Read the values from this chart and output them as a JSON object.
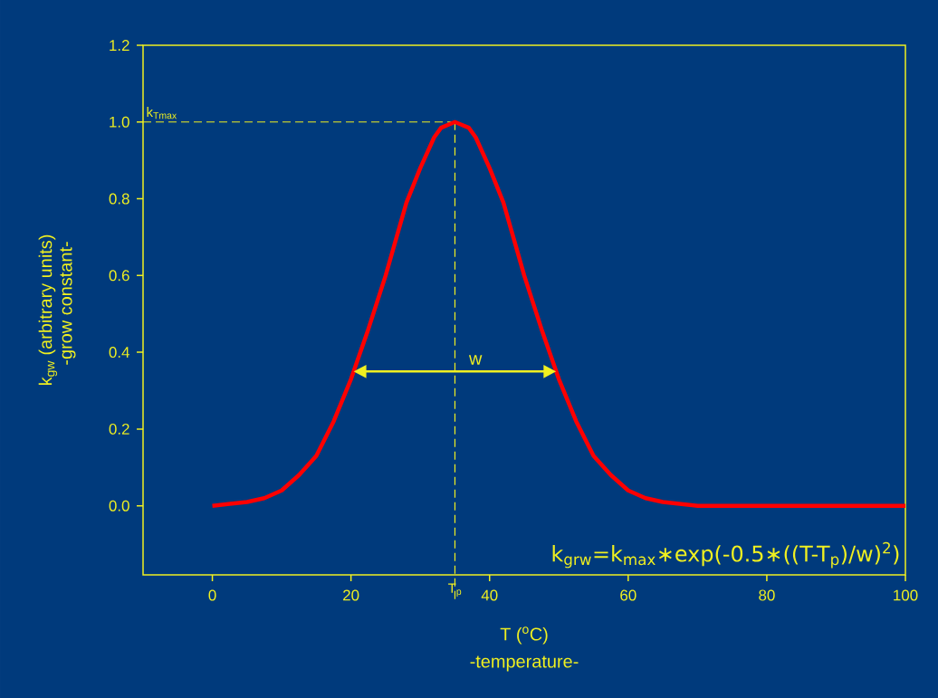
{
  "chart_data": {
    "type": "line",
    "xlabel": "T ($^{o}$C)",
    "ylabel": "k$_{gw}$ (arbitrary units)",
    "xlim": [
      -10,
      100
    ],
    "xticks": [
      0,
      20,
      40,
      60,
      80,
      100
    ],
    "ylim": [
      -0.18,
      1.2
    ],
    "yticks": [
      {
        "value": 0,
        "label": "0.0"
      },
      0.2,
      0.4,
      0.6,
      0.8,
      {
        "value": 1,
        "label": "1.0"
      },
      1.2
    ],
    "grid": false,
    "marker": "none",
    "series": [
      {
        "color": "#ff0000",
        "x": [
          0,
          5,
          7.5,
          10,
          12.5,
          15,
          17.5,
          20,
          22.5,
          25,
          28,
          30,
          32,
          33,
          35,
          37,
          38,
          40,
          42,
          45,
          47.5,
          50,
          52.5,
          55,
          57.5,
          60,
          62.5,
          65,
          70,
          80,
          90,
          100
        ],
        "values": [
          0.0,
          0.01,
          0.02,
          0.04,
          0.08,
          0.13,
          0.22,
          0.33,
          0.46,
          0.6,
          0.79,
          0.88,
          0.96,
          0.985,
          1.0,
          0.985,
          0.96,
          0.88,
          0.79,
          0.6,
          0.46,
          0.33,
          0.22,
          0.13,
          0.08,
          0.04,
          0.02,
          0.01,
          0.0,
          0.0,
          0.0,
          0.0
        ]
      }
    ],
    "ref_lines": [
      {
        "axis": "y",
        "value": 1.0,
        "label": "k$_{Tmax}$",
        "line_style": "dashed",
        "color": "#f0f020"
      },
      {
        "axis": "x",
        "value": 35,
        "label": "T$_{p}$",
        "line_style": "dashed",
        "color": "#f0f020"
      }
    ],
    "annotations": [
      {
        "text": "w",
        "x": 35,
        "y": 0.35
      },
      "k$_{grw}$=k$_{max}$∗exp(-0.5∗((T-T$_{p}$)/w)$^{2}$)",
      "-temperature-",
      "-grow constant-"
    ]
  }
}
